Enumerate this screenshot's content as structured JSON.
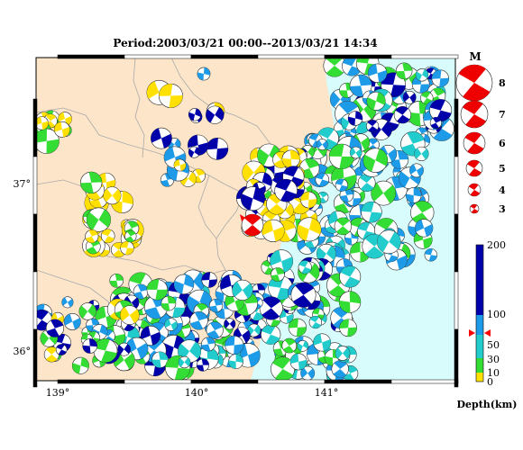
{
  "title": "Period:2003/03/21 00:00--2013/03/21 14:34",
  "map": {
    "lon_labels": [
      "139°",
      "140°",
      "141°"
    ],
    "lat_labels": [
      "37°",
      "36°"
    ],
    "land_color": "#fce5c8",
    "sea_color": "#d8fbfb"
  },
  "magnitude_legend": {
    "title": "M",
    "items": [
      "8",
      "7",
      "6",
      "5",
      "4",
      "3"
    ],
    "color": "#ee0000"
  },
  "depth_scale": {
    "title": "Depth(km)",
    "ticks": [
      "200",
      "100",
      "50",
      "30",
      "10",
      "0"
    ],
    "colors": {
      "deep": "#0000aa",
      "intermediate": "#1e9be8",
      "mid": "#22cccc",
      "shallow": "#33dd33",
      "surface": "#ffe000"
    },
    "marker_color": "#ff0000"
  },
  "mainshock": {
    "color": "#ee0000"
  }
}
